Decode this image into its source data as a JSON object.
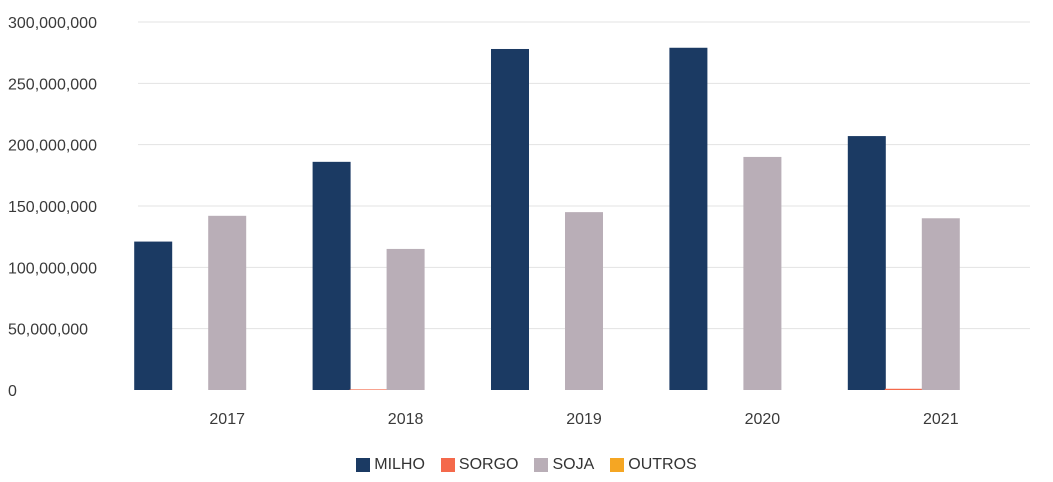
{
  "chart_data": {
    "type": "bar",
    "categories": [
      "2017",
      "2018",
      "2019",
      "2020",
      "2021"
    ],
    "series": [
      {
        "name": "MILHO",
        "color": "#1b3a63",
        "values": [
          121000000,
          186000000,
          278000000,
          279000000,
          207000000
        ]
      },
      {
        "name": "SORGO",
        "color": "#f4694b",
        "values": [
          0,
          500000,
          0,
          0,
          1000000
        ]
      },
      {
        "name": "SOJA",
        "color": "#b9aeb7",
        "values": [
          142000000,
          115000000,
          145000000,
          190000000,
          140000000
        ]
      },
      {
        "name": "OUTROS",
        "color": "#f5a623",
        "values": [
          0,
          0,
          0,
          0,
          0
        ]
      }
    ],
    "yticks": [
      "0",
      "50,000,000",
      "100,000,000",
      "150,000,000",
      "200,000,000",
      "250,000,000",
      "300,000,000"
    ],
    "ylim": [
      0,
      300000000
    ],
    "grid": true,
    "legend_position": "bottom",
    "title": "",
    "xlabel": "",
    "ylabel": ""
  }
}
